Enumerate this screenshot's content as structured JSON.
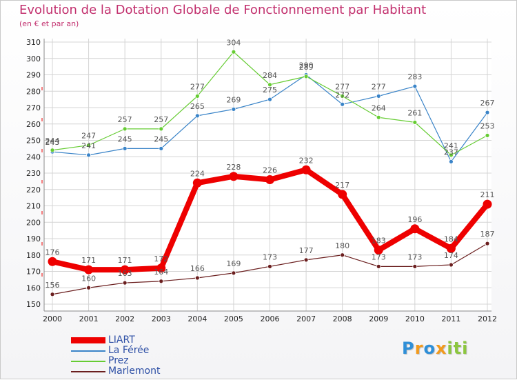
{
  "header": {
    "title": "Evolution de la Dotation Globale de Fonctionnement par Habitant",
    "subtitle": "(en € et par an)"
  },
  "colors": {
    "title": "#c2306e",
    "legend_text": "#2d4fa5",
    "grid": "#d4d4d4",
    "axis": "#8a8a8a"
  },
  "chart_data": {
    "type": "line",
    "title": "Evolution de la Dotation Globale de Fonctionnement par Habitant",
    "subtitle": "(en € et par an)",
    "xlabel": "",
    "ylabel": "",
    "ylim": [
      150,
      310
    ],
    "ytick_step": 10,
    "grid": true,
    "legend_position": "bottom-left",
    "x": [
      "2000",
      "2001",
      "2002",
      "2003",
      "2004",
      "2005",
      "2006",
      "2007",
      "2008",
      "2009",
      "2010",
      "2011",
      "2012"
    ],
    "series": [
      {
        "name": "LIART",
        "color": "#ee0000",
        "values": [
          176,
          171,
          171,
          172,
          224,
          228,
          226,
          232,
          217,
          183,
          196,
          184,
          211
        ]
      },
      {
        "name": "La Férée",
        "color": "#3a84c8",
        "values": [
          243,
          241,
          245,
          245,
          265,
          269,
          275,
          290,
          272,
          277,
          283,
          237,
          267
        ]
      },
      {
        "name": "Prez",
        "color": "#66cc33",
        "values": [
          244,
          247,
          257,
          257,
          277,
          304,
          284,
          289,
          277,
          264,
          261,
          241,
          253
        ]
      },
      {
        "name": "Marlemont",
        "color": "#6b1f1f",
        "values": [
          156,
          160,
          163,
          164,
          166,
          169,
          173,
          177,
          180,
          173,
          173,
          174,
          187
        ]
      }
    ]
  },
  "logo": {
    "letters": [
      "P",
      "r",
      "o",
      "x",
      "i",
      "t",
      "i"
    ],
    "colors": [
      "#2e8fd8",
      "#f29a1c",
      "#2e8fd8",
      "#f29a1c",
      "#8cc63f",
      "#8cc63f",
      "#8cc63f"
    ]
  }
}
